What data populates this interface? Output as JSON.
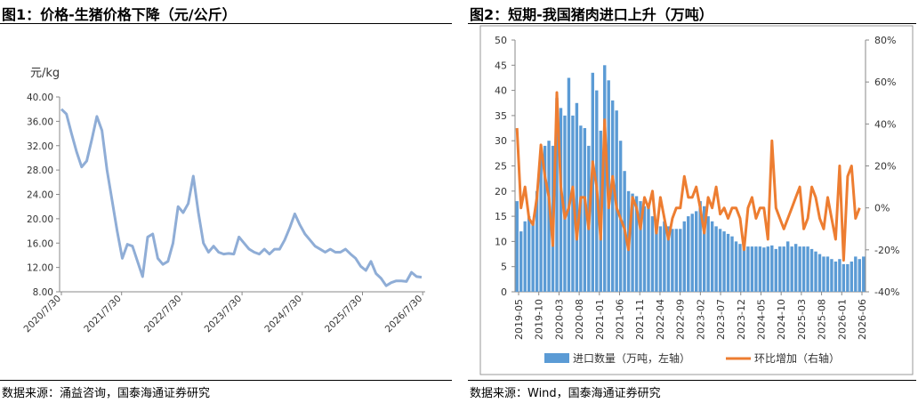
{
  "left_panel": {
    "title": "图1：价格-生猪价格下降（元/公斤）",
    "source": "数据来源：涌益咨询，国泰海通证券研究"
  },
  "right_panel": {
    "title": "图2：短期-我国猪肉进口上升（万吨）",
    "source": "数据来源：Wind，国泰海通证券研究"
  },
  "colors": {
    "price_line": "#8FADD6",
    "import_bar": "#5B9BD5",
    "mom_line": "#ED7D31"
  },
  "chart_data": [
    {
      "type": "line",
      "unit_label": "元/kg",
      "ylim": [
        8,
        40
      ],
      "y_ticks": [
        "8.00",
        "12.00",
        "16.00",
        "20.00",
        "24.00",
        "28.00",
        "32.00",
        "36.00",
        "40.00"
      ],
      "x_ticks": [
        "2020/7/30",
        "2021/7/30",
        "2022/7/30",
        "2023/7/30",
        "2024/7/30",
        "2025/7/30",
        "2026/7/30"
      ],
      "grid": false,
      "series": [
        {
          "x": [
            "2020-08",
            "2020-09",
            "2020-10",
            "2020-11",
            "2020-12",
            "2021-01",
            "2021-02",
            "2021-03",
            "2021-04",
            "2021-05",
            "2021-06",
            "2021-07",
            "2021-08",
            "2021-09",
            "2021-10",
            "2021-11",
            "2021-12",
            "2022-01",
            "2022-02",
            "2022-03",
            "2022-04",
            "2022-05",
            "2022-06",
            "2022-07",
            "2022-08",
            "2022-09",
            "2022-10",
            "2022-11",
            "2022-12",
            "2023-01",
            "2023-02",
            "2023-03",
            "2023-04",
            "2023-05",
            "2023-06",
            "2023-07",
            "2023-08",
            "2023-09",
            "2023-10",
            "2023-11",
            "2023-12",
            "2024-01",
            "2024-02",
            "2024-03",
            "2024-04",
            "2024-05",
            "2024-06",
            "2024-07",
            "2024-08",
            "2024-09",
            "2024-10",
            "2024-11",
            "2024-12",
            "2025-01",
            "2025-02",
            "2025-03",
            "2025-04",
            "2025-05",
            "2025-06",
            "2025-07",
            "2025-08",
            "2025-09",
            "2025-10",
            "2025-11",
            "2025-12",
            "2026-01",
            "2026-02",
            "2026-03",
            "2026-04",
            "2026-05",
            "2026-06",
            "2026-07"
          ],
          "values": [
            38,
            37.2,
            34,
            31,
            28.5,
            29.5,
            33,
            36.8,
            34.5,
            28,
            23,
            18,
            13.5,
            15.8,
            15.5,
            13,
            10.5,
            17,
            17.5,
            13.5,
            12.5,
            13,
            16,
            22,
            21,
            22.5,
            27,
            21,
            16,
            14.5,
            15.5,
            14.5,
            14.2,
            14.3,
            14.2,
            17,
            16,
            15,
            14.5,
            14.2,
            15,
            14.2,
            15,
            15,
            16.5,
            18.5,
            20.8,
            19,
            17.5,
            16.5,
            15.5,
            15,
            14.5,
            15,
            14.5,
            14.5,
            15,
            14.2,
            13.5,
            12.2,
            11.5,
            13,
            11,
            10.2,
            9,
            9.5,
            9.8,
            9.8,
            9.7,
            11.2,
            10.5,
            10.4
          ]
        }
      ]
    },
    {
      "type": "bar",
      "left_ylim": [
        0,
        50
      ],
      "right_ylim": [
        -40,
        80
      ],
      "left_ticks": [
        "0",
        "5",
        "10",
        "15",
        "20",
        "25",
        "30",
        "35",
        "40",
        "45",
        "50"
      ],
      "right_ticks": [
        "-40%",
        "-20%",
        "0%",
        "20%",
        "40%",
        "60%",
        "80%"
      ],
      "x_ticks": [
        "2019-05",
        "2019-10",
        "2020-03",
        "2020-08",
        "2021-01",
        "2021-06",
        "2021-11",
        "2022-04",
        "2022-09",
        "2023-02",
        "2023-07",
        "2023-12",
        "2024-05",
        "2024-10",
        "2025-03",
        "2025-08",
        "2026-01",
        "2026-06"
      ],
      "legend_position": "bottom",
      "grid": false,
      "series": [
        {
          "name": "进口数量（万吨，左轴）",
          "type": "bar",
          "axis": "left",
          "values": [
            18,
            12,
            14,
            15,
            14,
            20,
            27.5,
            29,
            30,
            29,
            38.5,
            36.5,
            35,
            42.5,
            35,
            37.5,
            33,
            32.5,
            29,
            43.5,
            40,
            32,
            45,
            42,
            38,
            36,
            30,
            24,
            20,
            19.5,
            19,
            18,
            17,
            17,
            15,
            14,
            13,
            14,
            13,
            12.5,
            12.5,
            12.5,
            14,
            15,
            15.5,
            16,
            18,
            17,
            15,
            14,
            13,
            12.5,
            12,
            11.5,
            11,
            10,
            9.5,
            9,
            9,
            9,
            9,
            9,
            8.8,
            9,
            9.2,
            8.5,
            9,
            9,
            10,
            9,
            9.5,
            9,
            9,
            9,
            8.5,
            8,
            7.5,
            7,
            7,
            6.5,
            6,
            6.5,
            5.5,
            5.5,
            6,
            7,
            6.5,
            7
          ]
        },
        {
          "name": "环比增加（右轴）",
          "type": "line",
          "axis": "right",
          "values": [
            38,
            0,
            10,
            -5,
            -8,
            5,
            30,
            15,
            5,
            -18,
            55,
            10,
            -5,
            0,
            10,
            -15,
            5,
            5,
            -10,
            22,
            10,
            -15,
            42,
            0,
            15,
            0,
            -5,
            -10,
            -20,
            5,
            0,
            -10,
            5,
            0,
            8,
            -12,
            5,
            -5,
            -15,
            -5,
            0,
            0,
            15,
            5,
            5,
            10,
            0,
            -12,
            5,
            0,
            10,
            -3,
            0,
            -5,
            0,
            0,
            -5,
            -20,
            0,
            5,
            -5,
            0,
            0,
            -15,
            32,
            0,
            -5,
            -10,
            -5,
            0,
            5,
            10,
            -10,
            -5,
            10,
            5,
            -5,
            -10,
            5,
            -5,
            -15,
            20,
            -25,
            15,
            20,
            -5,
            0
          ]
        }
      ]
    }
  ]
}
